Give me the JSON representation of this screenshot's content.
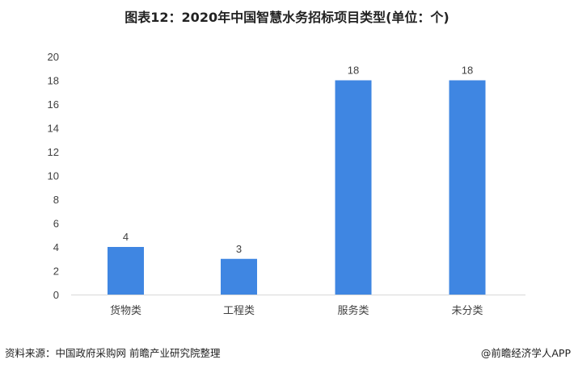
{
  "chart_data": {
    "type": "bar",
    "title": "图表12：2020年中国智慧水务招标项目类型(单位：个)",
    "categories": [
      "货物类",
      "工程类",
      "服务类",
      "未分类"
    ],
    "values": [
      4,
      3,
      18,
      18
    ],
    "ylim": [
      0,
      20
    ],
    "yticks": [
      0,
      2,
      4,
      6,
      8,
      10,
      12,
      14,
      16,
      18,
      20
    ],
    "grid": false,
    "data_labels": true,
    "bar_color": "#3F86E2",
    "axis_color": "#D9D9D9",
    "text_color": "#404040"
  },
  "footer": {
    "source": "资料来源：中国政府采购网 前瞻产业研究院整理",
    "brand": "@前瞻经济学人APP"
  }
}
